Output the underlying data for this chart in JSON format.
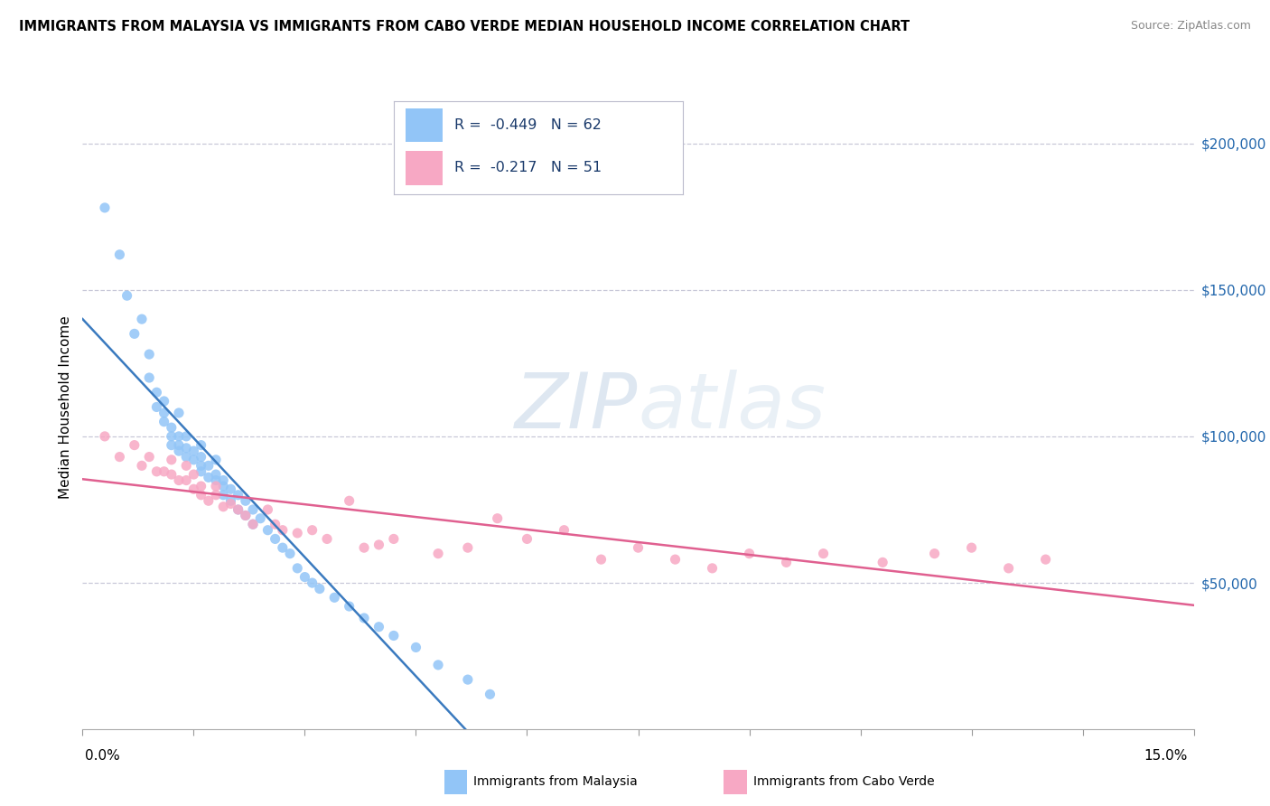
{
  "title": "IMMIGRANTS FROM MALAYSIA VS IMMIGRANTS FROM CABO VERDE MEDIAN HOUSEHOLD INCOME CORRELATION CHART",
  "source": "Source: ZipAtlas.com",
  "ylabel": "Median Household Income",
  "legend1_label": "Immigrants from Malaysia",
  "legend2_label": "Immigrants from Cabo Verde",
  "R1": "-0.449",
  "N1": "62",
  "R2": "-0.217",
  "N2": "51",
  "color1": "#92c5f7",
  "color2": "#f7a8c4",
  "line1_color": "#3a7abf",
  "line2_color": "#e06090",
  "xlim": [
    0.0,
    0.15
  ],
  "ylim": [
    0,
    220000
  ],
  "yticks": [
    50000,
    100000,
    150000,
    200000
  ],
  "ytick_labels": [
    "$50,000",
    "$100,000",
    "$150,000",
    "$200,000"
  ],
  "malaysia_x": [
    0.003,
    0.005,
    0.006,
    0.007,
    0.008,
    0.009,
    0.009,
    0.01,
    0.01,
    0.011,
    0.011,
    0.011,
    0.012,
    0.012,
    0.012,
    0.013,
    0.013,
    0.013,
    0.013,
    0.014,
    0.014,
    0.014,
    0.015,
    0.015,
    0.016,
    0.016,
    0.016,
    0.016,
    0.017,
    0.017,
    0.018,
    0.018,
    0.018,
    0.019,
    0.019,
    0.019,
    0.02,
    0.02,
    0.021,
    0.021,
    0.022,
    0.022,
    0.023,
    0.023,
    0.024,
    0.025,
    0.026,
    0.027,
    0.028,
    0.029,
    0.03,
    0.031,
    0.032,
    0.034,
    0.036,
    0.038,
    0.04,
    0.042,
    0.045,
    0.048,
    0.052,
    0.055
  ],
  "malaysia_y": [
    178000,
    162000,
    148000,
    135000,
    140000,
    128000,
    120000,
    115000,
    110000,
    112000,
    108000,
    105000,
    103000,
    100000,
    97000,
    100000,
    97000,
    95000,
    108000,
    93000,
    96000,
    100000,
    92000,
    95000,
    90000,
    93000,
    97000,
    88000,
    86000,
    90000,
    85000,
    87000,
    92000,
    83000,
    85000,
    80000,
    82000,
    78000,
    80000,
    75000,
    78000,
    73000,
    75000,
    70000,
    72000,
    68000,
    65000,
    62000,
    60000,
    55000,
    52000,
    50000,
    48000,
    45000,
    42000,
    38000,
    35000,
    32000,
    28000,
    22000,
    17000,
    12000
  ],
  "caboverde_x": [
    0.003,
    0.005,
    0.007,
    0.008,
    0.009,
    0.01,
    0.011,
    0.012,
    0.012,
    0.013,
    0.014,
    0.014,
    0.015,
    0.015,
    0.016,
    0.016,
    0.017,
    0.018,
    0.018,
    0.019,
    0.02,
    0.021,
    0.022,
    0.023,
    0.025,
    0.026,
    0.027,
    0.029,
    0.031,
    0.033,
    0.036,
    0.038,
    0.04,
    0.042,
    0.048,
    0.052,
    0.056,
    0.06,
    0.065,
    0.07,
    0.075,
    0.08,
    0.085,
    0.09,
    0.095,
    0.1,
    0.108,
    0.115,
    0.12,
    0.125,
    0.13
  ],
  "caboverde_y": [
    100000,
    93000,
    97000,
    90000,
    93000,
    88000,
    88000,
    87000,
    92000,
    85000,
    85000,
    90000,
    82000,
    87000,
    80000,
    83000,
    78000,
    80000,
    83000,
    76000,
    77000,
    75000,
    73000,
    70000,
    75000,
    70000,
    68000,
    67000,
    68000,
    65000,
    78000,
    62000,
    63000,
    65000,
    60000,
    62000,
    72000,
    65000,
    68000,
    58000,
    62000,
    58000,
    55000,
    60000,
    57000,
    60000,
    57000,
    60000,
    62000,
    55000,
    58000
  ]
}
